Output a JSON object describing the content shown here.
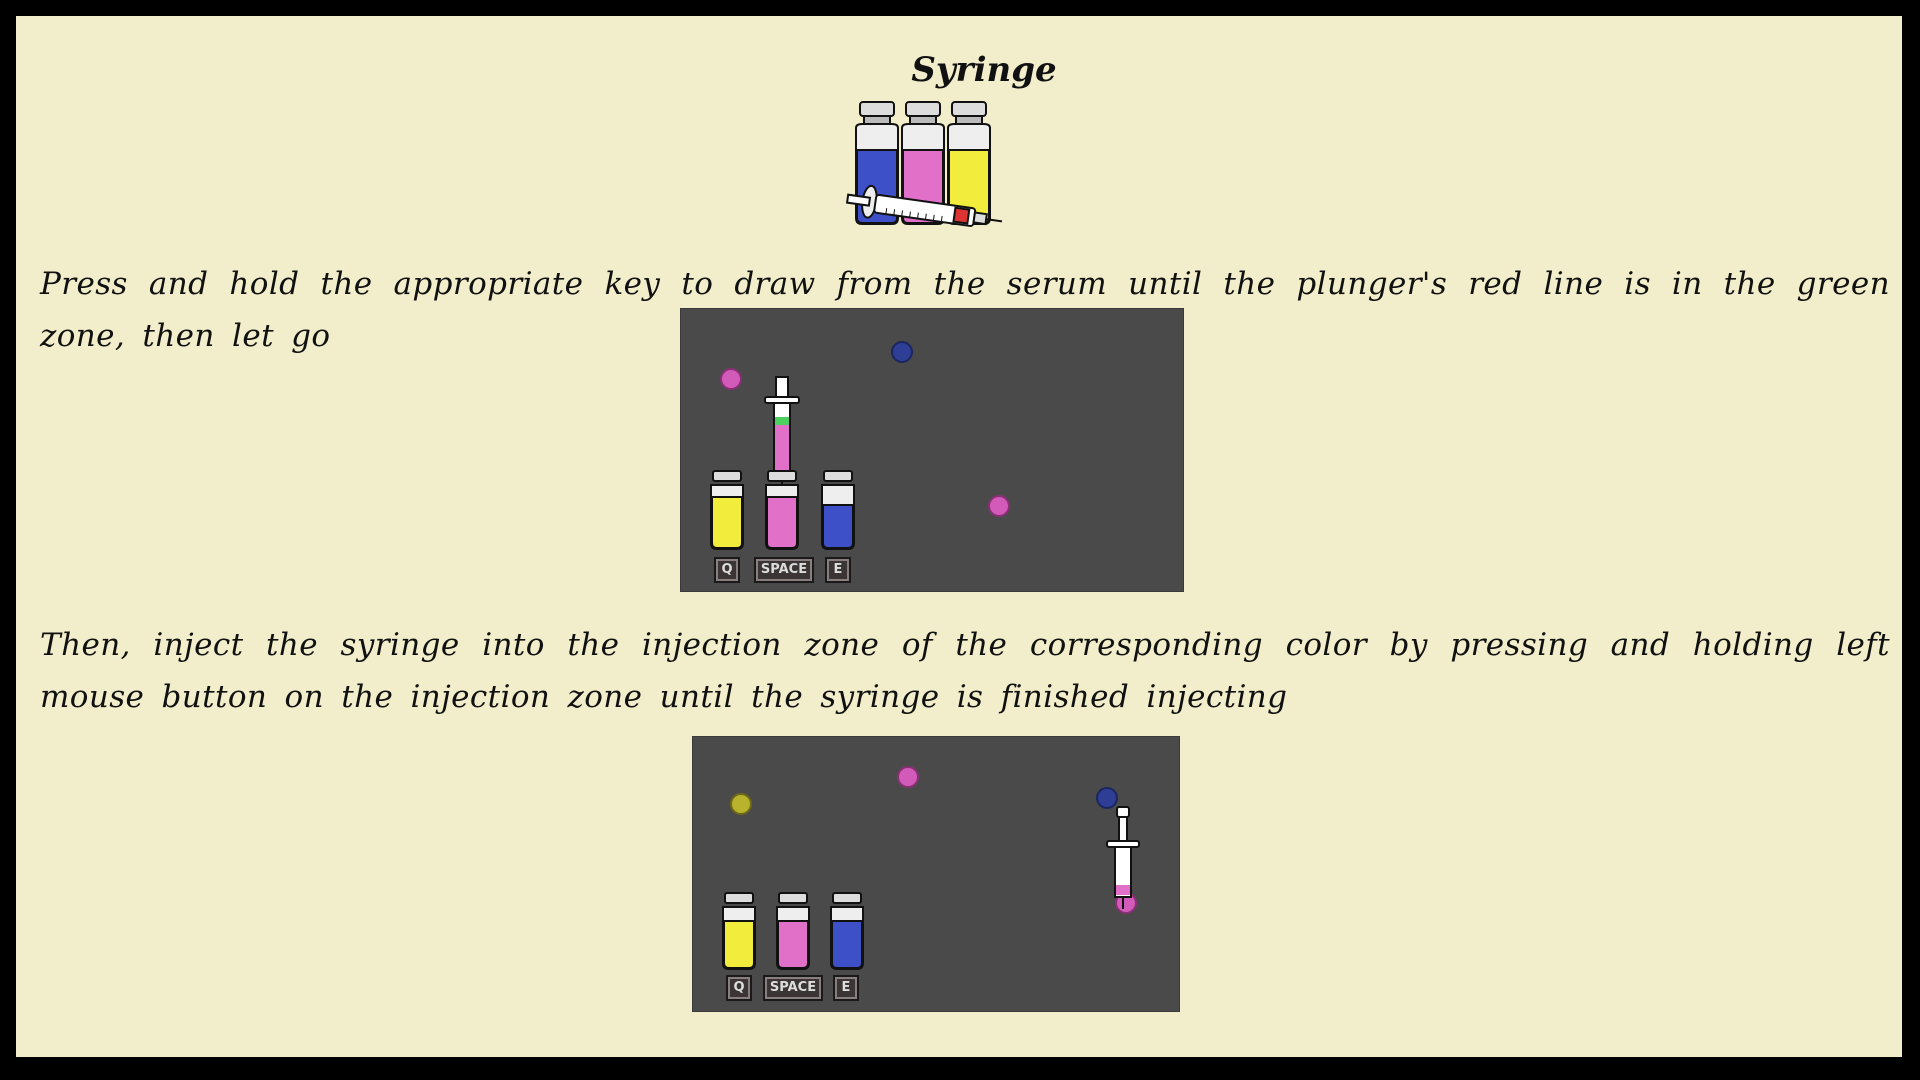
{
  "title": "Syringe",
  "instructions": [
    "Press and hold the appropriate key to draw from the serum until the plunger's red line is in the green zone, then let go",
    "Then, inject the syringe into the injection zone of the corresponding color by pressing and holding left mouse button on the injection zone until the syringe is finished injecting"
  ],
  "keys": {
    "left": "Q",
    "middle": "SPACE",
    "right": "E"
  },
  "colors": {
    "background": "#f2eecb",
    "frame": "#000000",
    "demo_bg": "#4a4a4a",
    "serum_yellow": "#f2ec3c",
    "serum_pink": "#e070c8",
    "serum_blue": "#3d50c8"
  },
  "icons": [
    "vial-icon",
    "syringe-icon",
    "injection-zone-icon"
  ]
}
